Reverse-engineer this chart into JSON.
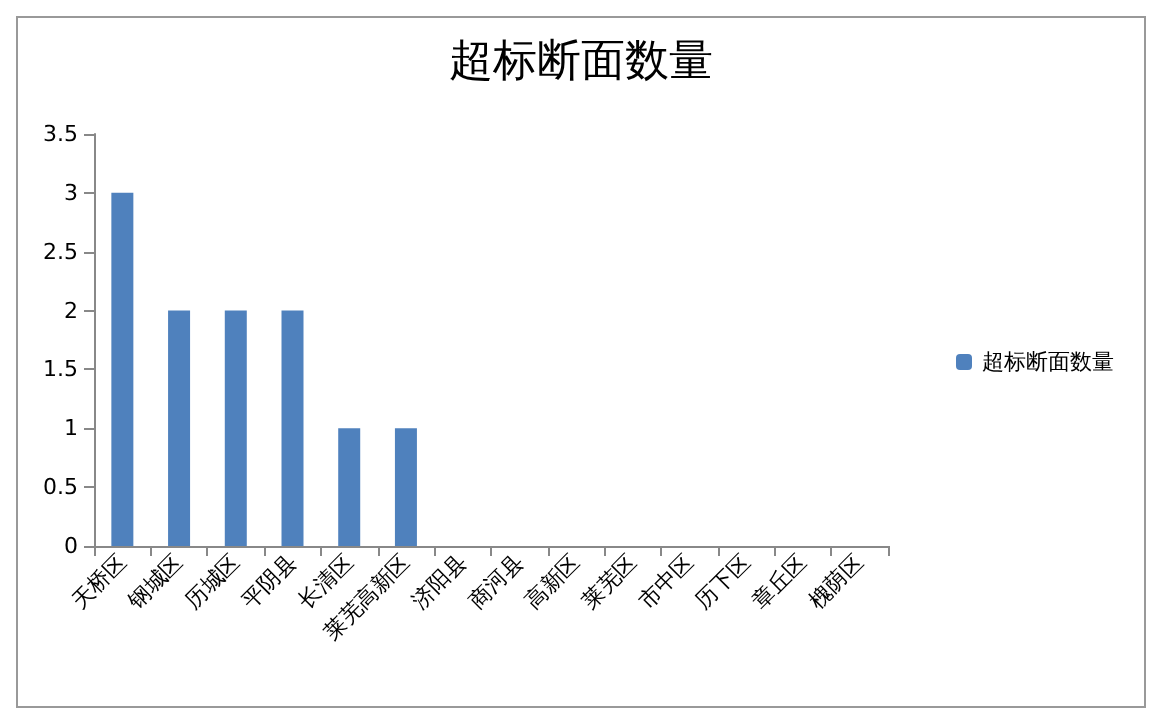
{
  "chart_data": {
    "type": "bar",
    "title": "超标断面数量",
    "categories": [
      "天桥区",
      "钢城区",
      "历城区",
      "平阴县",
      "长清区",
      "莱芜高新区",
      "济阳县",
      "商河县",
      "高新区",
      "莱芜区",
      "市中区",
      "历下区",
      "章丘区",
      "槐荫区"
    ],
    "series": [
      {
        "name": "超标断面数量",
        "color": "#4f81bd",
        "values": [
          3,
          2,
          2,
          2,
          1,
          1,
          0,
          0,
          0,
          0,
          0,
          0,
          0,
          0
        ]
      }
    ],
    "ylim": [
      0,
      3.5
    ],
    "yticks": [
      0,
      0.5,
      1,
      1.5,
      2,
      2.5,
      3,
      3.5
    ],
    "grid": false,
    "legend": "right"
  }
}
